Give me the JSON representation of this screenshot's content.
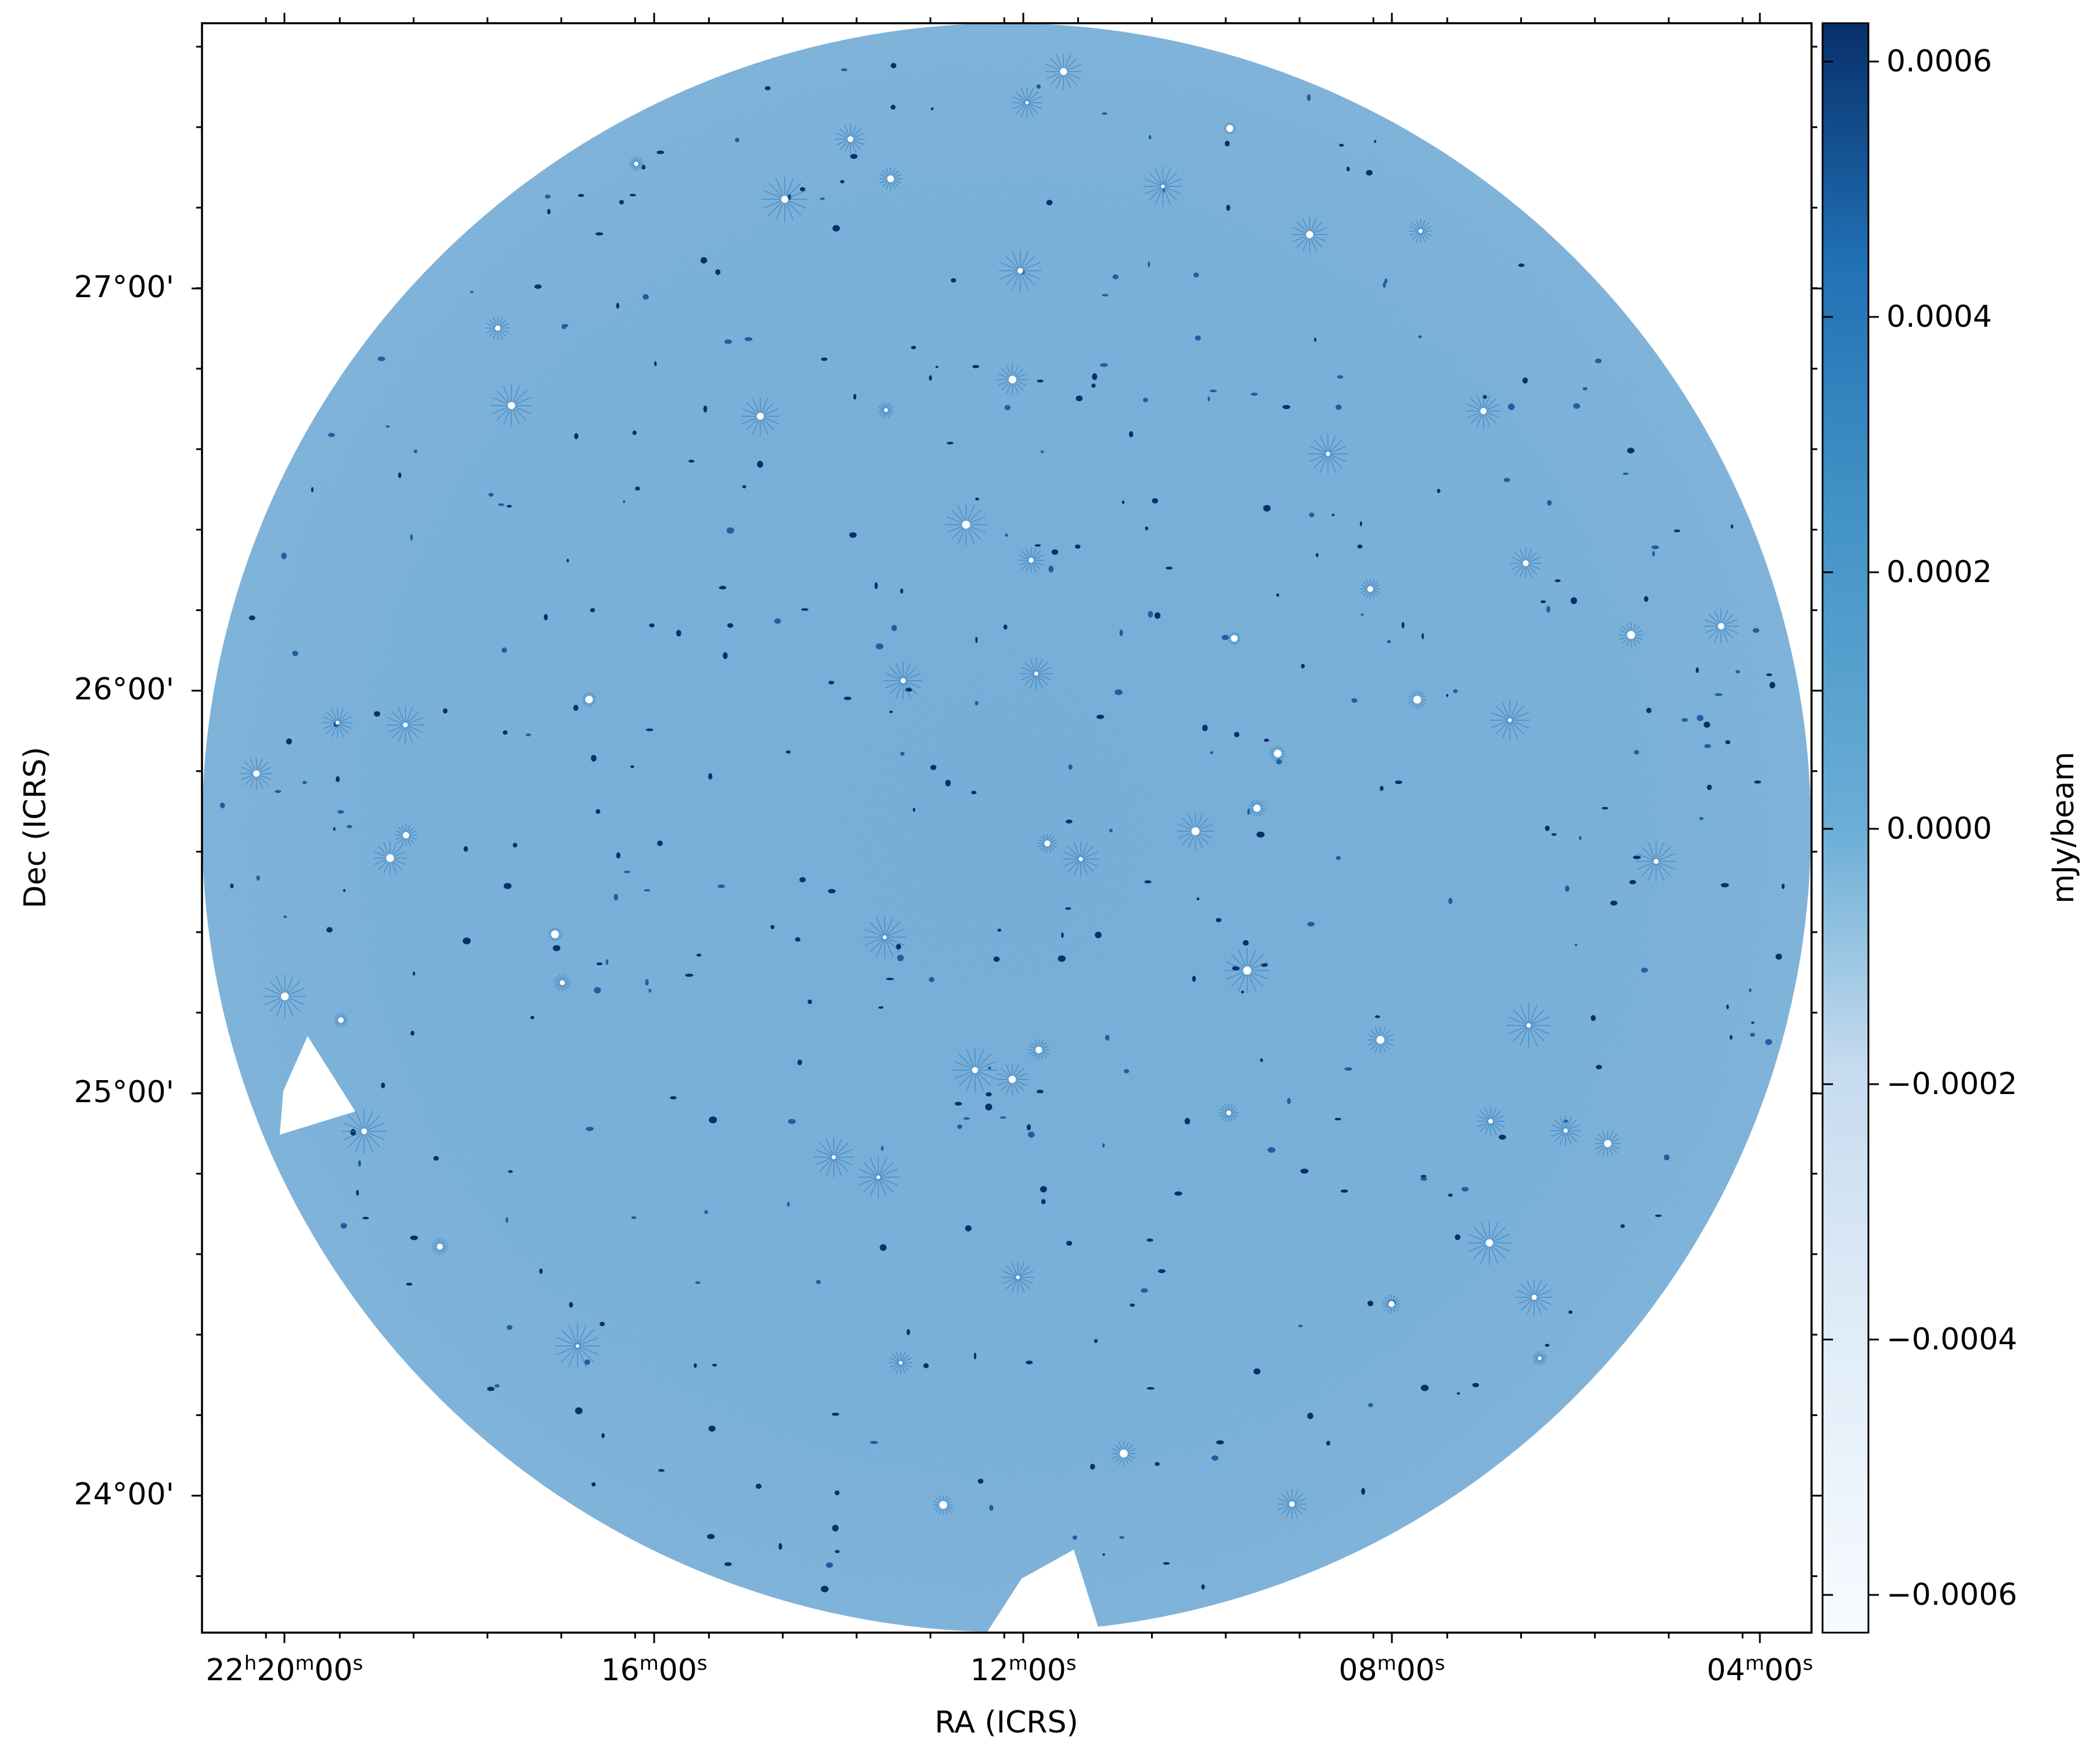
{
  "figure": {
    "x_axis_label": "RA (ICRS)",
    "y_axis_label": "Dec (ICRS)",
    "colorbar_label": "mJy/beam",
    "colormap": "Blues",
    "background_color": "#6fa8d4",
    "x_ticks": [
      {
        "h": "22",
        "m": "20",
        "s": "00",
        "show_hours": true
      },
      {
        "h": "",
        "m": "16",
        "s": "00",
        "show_hours": false
      },
      {
        "h": "",
        "m": "12",
        "s": "00",
        "show_hours": false
      },
      {
        "h": "",
        "m": "08",
        "s": "00",
        "show_hours": false
      },
      {
        "h": "",
        "m": "04",
        "s": "00",
        "show_hours": false
      }
    ],
    "y_ticks": [
      "24°00'",
      "25°00'",
      "26°00'",
      "27°00'"
    ],
    "colorbar_ticks": [
      "0.0006",
      "0.0004",
      "0.0002",
      "0.0000",
      "−0.0002",
      "−0.0004",
      "−0.0006"
    ],
    "colorbar_range": [
      -0.00063,
      0.00063
    ],
    "colors": {
      "cmap_low": "#f7fbff",
      "cmap_mid_low": "#c6dbef",
      "cmap_mid": "#6baed6",
      "cmap_mid_high": "#2171b5",
      "cmap_high": "#08306b",
      "field_fill": "#6fa8d4"
    }
  }
}
